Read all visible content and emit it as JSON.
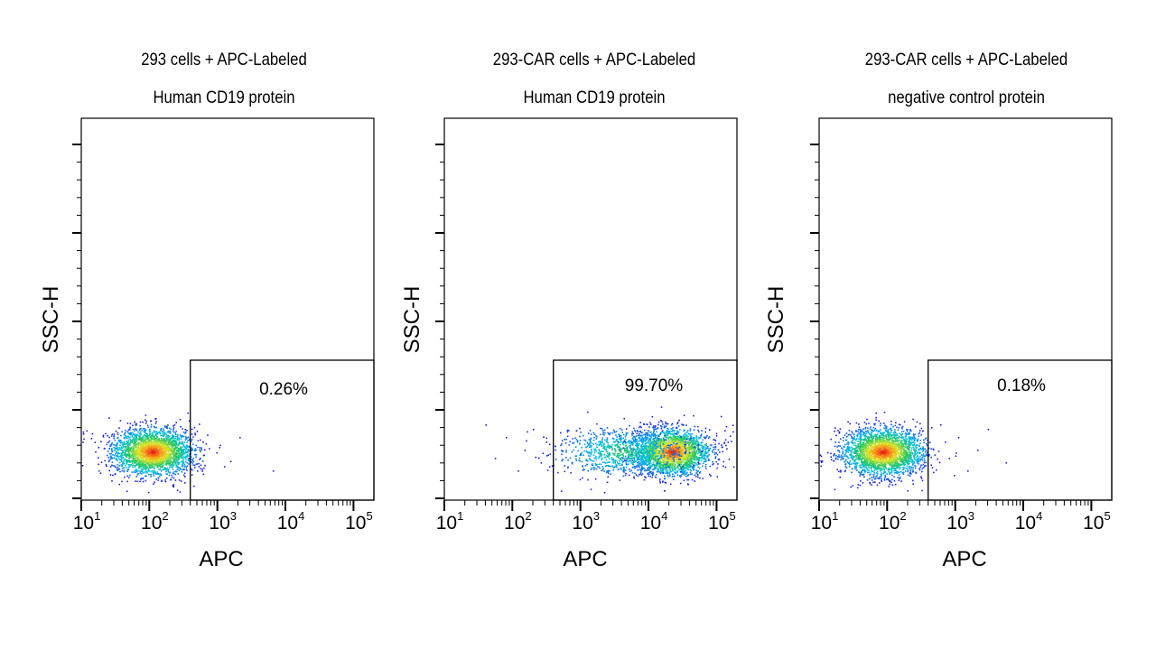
{
  "chart_data": [
    {
      "type": "scatter",
      "title_line1": "293 cells + APC-Labeled",
      "title_line2": "Human CD19 protein",
      "xlabel": "APC",
      "ylabel": "SSC-H",
      "x_scale": "log",
      "x_ticks": [
        10,
        100,
        1000,
        10000,
        100000
      ],
      "gate": {
        "x_from": 400,
        "label": "0.26%"
      },
      "clusters": [
        {
          "x_center": 110,
          "log_spread": 0.3,
          "n": 2400
        }
      ],
      "outliers_x": [
        230,
        380,
        2100,
        6500,
        400,
        330
      ]
    },
    {
      "type": "scatter",
      "title_line1": "293-CAR cells + APC-Labeled",
      "title_line2": "Human CD19 protein",
      "xlabel": "APC",
      "ylabel": "SSC-H",
      "x_scale": "log",
      "x_ticks": [
        10,
        100,
        1000,
        10000,
        100000
      ],
      "gate": {
        "x_from": 400,
        "label": "99.70%"
      },
      "clusters": [
        {
          "x_center": 22000,
          "log_spread": 0.28,
          "n": 2200
        },
        {
          "x_center": 4000,
          "log_spread": 0.45,
          "n": 900
        }
      ],
      "outliers_x": [
        40,
        55,
        80,
        120,
        150,
        200,
        260,
        310
      ]
    },
    {
      "type": "scatter",
      "title_line1": "293-CAR cells + APC-Labeled",
      "title_line2": "negative control protein",
      "xlabel": "APC",
      "ylabel": "SSC-H",
      "x_scale": "log",
      "x_ticks": [
        10,
        100,
        1000,
        10000,
        100000
      ],
      "gate": {
        "x_from": 400,
        "label": "0.18%"
      },
      "clusters": [
        {
          "x_center": 85,
          "log_spread": 0.3,
          "n": 2400
        }
      ],
      "outliers_x": [
        600,
        800,
        1100,
        1500,
        2100,
        3000,
        5500,
        700,
        950
      ]
    }
  ]
}
